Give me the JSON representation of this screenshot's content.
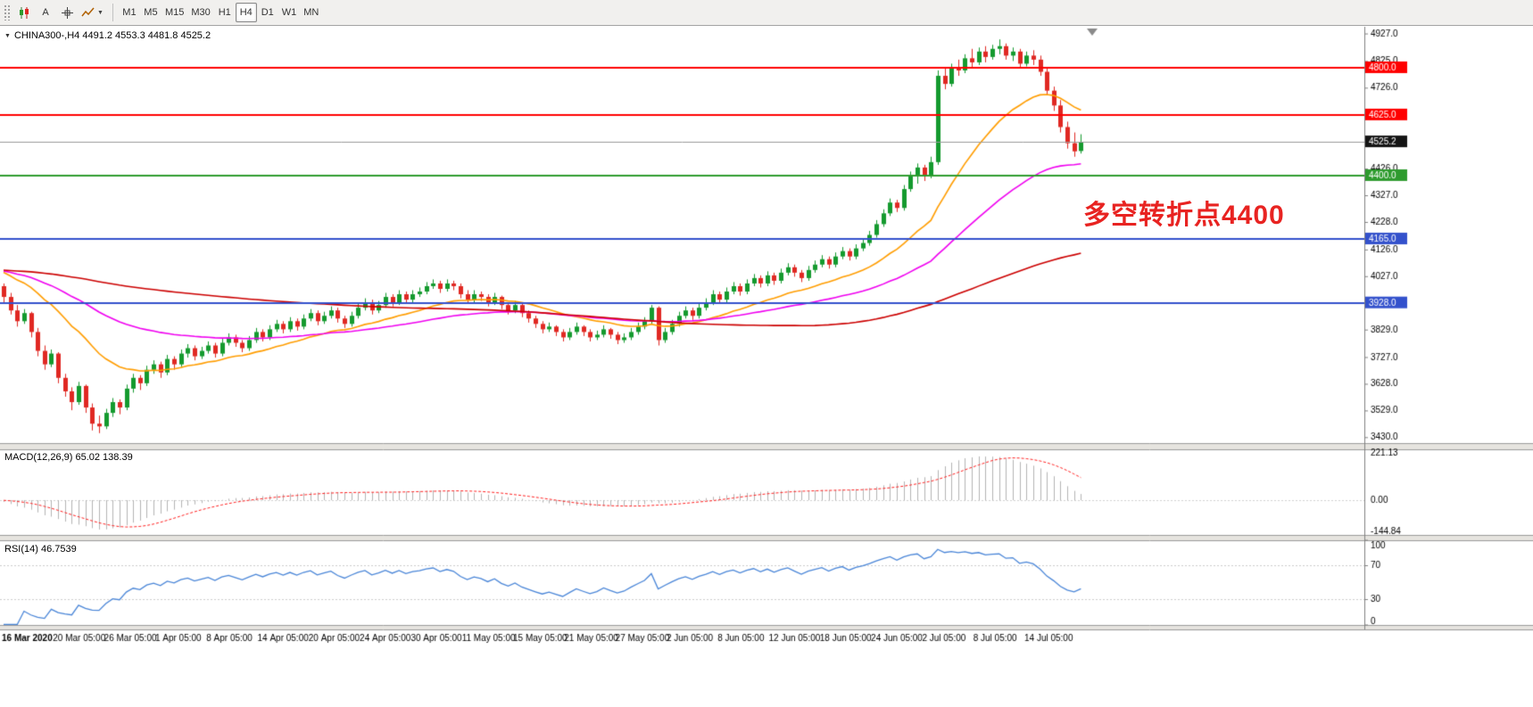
{
  "toolbar": {
    "tools": [
      {
        "name": "chart-type-icon"
      },
      {
        "name": "text-tool",
        "label": "A"
      },
      {
        "name": "crosshair-tool"
      },
      {
        "name": "indicator-dropdown"
      }
    ],
    "timeframes": [
      {
        "label": "M1",
        "active": false
      },
      {
        "label": "M5",
        "active": false
      },
      {
        "label": "M15",
        "active": false
      },
      {
        "label": "M30",
        "active": false
      },
      {
        "label": "H1",
        "active": false
      },
      {
        "label": "H4",
        "active": true
      },
      {
        "label": "D1",
        "active": false
      },
      {
        "label": "W1",
        "active": false
      },
      {
        "label": "MN",
        "active": false
      }
    ]
  },
  "chart": {
    "symbol_title": "CHINA300-,H4  4491.2 4553.3 4481.8 4525.2",
    "dropdown_icon": "▼",
    "annotation": {
      "text": "多空转折点4400",
      "color": "#e82321"
    },
    "macd_label": "MACD(12,26,9) 65.02 138.39",
    "rsi_label": "RSI(14) 46.7539"
  },
  "chart_data": {
    "type": "candlestick",
    "symbol": "CHINA300-",
    "timeframe": "H4",
    "last_ohlc": {
      "open": 4491.2,
      "high": 4553.3,
      "low": 4481.8,
      "close": 4525.2
    },
    "price_axis": {
      "min": 3408,
      "max": 4952,
      "ticks": [
        {
          "v": 4927.0,
          "s": "n"
        },
        {
          "v": 4825.0,
          "s": "n"
        },
        {
          "v": 4800.0,
          "s": "red"
        },
        {
          "v": 4726.0,
          "s": "n"
        },
        {
          "v": 4625.0,
          "s": "red"
        },
        {
          "v": 4525.2,
          "s": "cur"
        },
        {
          "v": 4426.0,
          "s": "n"
        },
        {
          "v": 4400.0,
          "s": "green"
        },
        {
          "v": 4327.0,
          "s": "n"
        },
        {
          "v": 4228.0,
          "s": "n"
        },
        {
          "v": 4165.0,
          "s": "blue"
        },
        {
          "v": 4126.0,
          "s": "n"
        },
        {
          "v": 4027.0,
          "s": "n"
        },
        {
          "v": 3928.0,
          "s": "blue"
        },
        {
          "v": 3829.0,
          "s": "n"
        },
        {
          "v": 3727.0,
          "s": "n"
        },
        {
          "v": 3628.0,
          "s": "n"
        },
        {
          "v": 3529.0,
          "s": "n"
        },
        {
          "v": 3430.0,
          "s": "n"
        }
      ]
    },
    "hlines": [
      {
        "price": 4800.0,
        "color": "#ff0000",
        "lw": 2
      },
      {
        "price": 4625.0,
        "color": "#ff0000",
        "lw": 2
      },
      {
        "price": 4525.2,
        "color": "#9a9a9a",
        "lw": 1
      },
      {
        "price": 4400.0,
        "color": "#2e9b2e",
        "lw": 2
      },
      {
        "price": 4165.0,
        "color": "#3351cc",
        "lw": 2
      },
      {
        "price": 3928.0,
        "color": "#3351cc",
        "lw": 2
      }
    ],
    "mas": [
      {
        "type": "ema",
        "period": 21,
        "color": "#ff9d00"
      },
      {
        "type": "ema",
        "period": 55,
        "color": "#f000f0"
      },
      {
        "type": "sma",
        "period": 120,
        "color": "#cc0000"
      }
    ],
    "ma_seed": 4050,
    "up_color": "#149a2e",
    "down_color": "#e02822",
    "candles": [
      [
        3990,
        4000,
        3930,
        3950
      ],
      [
        3950,
        3965,
        3885,
        3900
      ],
      [
        3900,
        3920,
        3840,
        3860
      ],
      [
        3860,
        3905,
        3850,
        3890
      ],
      [
        3890,
        3895,
        3800,
        3820
      ],
      [
        3820,
        3835,
        3730,
        3750
      ],
      [
        3750,
        3770,
        3680,
        3700
      ],
      [
        3700,
        3755,
        3690,
        3740
      ],
      [
        3740,
        3745,
        3630,
        3650
      ],
      [
        3650,
        3665,
        3580,
        3600
      ],
      [
        3600,
        3615,
        3530,
        3560
      ],
      [
        3560,
        3635,
        3550,
        3620
      ],
      [
        3620,
        3625,
        3520,
        3540
      ],
      [
        3540,
        3555,
        3455,
        3480
      ],
      [
        3480,
        3510,
        3445,
        3470
      ],
      [
        3470,
        3535,
        3460,
        3520
      ],
      [
        3520,
        3575,
        3505,
        3560
      ],
      [
        3560,
        3570,
        3515,
        3540
      ],
      [
        3540,
        3625,
        3530,
        3610
      ],
      [
        3610,
        3665,
        3595,
        3650
      ],
      [
        3650,
        3660,
        3605,
        3630
      ],
      [
        3630,
        3695,
        3620,
        3680
      ],
      [
        3680,
        3715,
        3665,
        3700
      ],
      [
        3700,
        3710,
        3650,
        3670
      ],
      [
        3670,
        3735,
        3660,
        3720
      ],
      [
        3720,
        3730,
        3680,
        3700
      ],
      [
        3700,
        3755,
        3690,
        3740
      ],
      [
        3740,
        3775,
        3725,
        3760
      ],
      [
        3760,
        3770,
        3715,
        3730
      ],
      [
        3730,
        3765,
        3720,
        3750
      ],
      [
        3750,
        3785,
        3740,
        3770
      ],
      [
        3770,
        3780,
        3725,
        3740
      ],
      [
        3740,
        3795,
        3730,
        3780
      ],
      [
        3780,
        3815,
        3770,
        3800
      ],
      [
        3800,
        3810,
        3765,
        3780
      ],
      [
        3780,
        3790,
        3745,
        3760
      ],
      [
        3760,
        3805,
        3750,
        3790
      ],
      [
        3790,
        3835,
        3780,
        3820
      ],
      [
        3820,
        3830,
        3785,
        3800
      ],
      [
        3800,
        3845,
        3790,
        3830
      ],
      [
        3830,
        3865,
        3820,
        3850
      ],
      [
        3850,
        3860,
        3815,
        3830
      ],
      [
        3830,
        3875,
        3820,
        3860
      ],
      [
        3860,
        3870,
        3825,
        3840
      ],
      [
        3840,
        3885,
        3830,
        3870
      ],
      [
        3870,
        3905,
        3860,
        3890
      ],
      [
        3890,
        3900,
        3845,
        3860
      ],
      [
        3860,
        3895,
        3850,
        3880
      ],
      [
        3880,
        3915,
        3870,
        3900
      ],
      [
        3900,
        3910,
        3855,
        3870
      ],
      [
        3870,
        3880,
        3835,
        3850
      ],
      [
        3850,
        3895,
        3840,
        3880
      ],
      [
        3880,
        3925,
        3870,
        3910
      ],
      [
        3910,
        3945,
        3900,
        3930
      ],
      [
        3930,
        3940,
        3885,
        3900
      ],
      [
        3900,
        3935,
        3890,
        3920
      ],
      [
        3920,
        3965,
        3910,
        3950
      ],
      [
        3950,
        3960,
        3915,
        3930
      ],
      [
        3930,
        3975,
        3920,
        3960
      ],
      [
        3960,
        3970,
        3925,
        3940
      ],
      [
        3940,
        3975,
        3930,
        3960
      ],
      [
        3960,
        3985,
        3950,
        3970
      ],
      [
        3970,
        4005,
        3960,
        3990
      ],
      [
        3990,
        4015,
        3980,
        4000
      ],
      [
        4000,
        4010,
        3965,
        3980
      ],
      [
        3980,
        4015,
        3970,
        4000
      ],
      [
        4000,
        4010,
        3975,
        3990
      ],
      [
        3990,
        4000,
        3945,
        3960
      ],
      [
        3960,
        3975,
        3925,
        3940
      ],
      [
        3940,
        3975,
        3930,
        3960
      ],
      [
        3960,
        3970,
        3935,
        3950
      ],
      [
        3950,
        3960,
        3915,
        3930
      ],
      [
        3930,
        3965,
        3920,
        3950
      ],
      [
        3950,
        3955,
        3905,
        3920
      ],
      [
        3920,
        3930,
        3885,
        3900
      ],
      [
        3900,
        3935,
        3890,
        3920
      ],
      [
        3920,
        3925,
        3875,
        3890
      ],
      [
        3890,
        3900,
        3855,
        3870
      ],
      [
        3870,
        3880,
        3835,
        3850
      ],
      [
        3850,
        3860,
        3815,
        3830
      ],
      [
        3830,
        3855,
        3820,
        3840
      ],
      [
        3840,
        3845,
        3805,
        3820
      ],
      [
        3820,
        3830,
        3785,
        3800
      ],
      [
        3800,
        3835,
        3790,
        3820
      ],
      [
        3820,
        3855,
        3810,
        3840
      ],
      [
        3840,
        3845,
        3805,
        3820
      ],
      [
        3820,
        3830,
        3785,
        3800
      ],
      [
        3800,
        3825,
        3790,
        3810
      ],
      [
        3810,
        3845,
        3800,
        3830
      ],
      [
        3830,
        3835,
        3795,
        3810
      ],
      [
        3810,
        3820,
        3775,
        3790
      ],
      [
        3790,
        3815,
        3780,
        3800
      ],
      [
        3800,
        3835,
        3790,
        3820
      ],
      [
        3820,
        3855,
        3810,
        3840
      ],
      [
        3840,
        3875,
        3830,
        3860
      ],
      [
        3860,
        3920,
        3850,
        3910
      ],
      [
        3910,
        3915,
        3770,
        3790
      ],
      [
        3790,
        3835,
        3780,
        3820
      ],
      [
        3820,
        3865,
        3810,
        3850
      ],
      [
        3850,
        3895,
        3840,
        3880
      ],
      [
        3880,
        3915,
        3870,
        3900
      ],
      [
        3900,
        3910,
        3865,
        3880
      ],
      [
        3880,
        3925,
        3870,
        3910
      ],
      [
        3910,
        3945,
        3900,
        3930
      ],
      [
        3930,
        3975,
        3920,
        3960
      ],
      [
        3960,
        3970,
        3925,
        3940
      ],
      [
        3940,
        3985,
        3930,
        3970
      ],
      [
        3970,
        4005,
        3960,
        3990
      ],
      [
        3990,
        4000,
        3955,
        3970
      ],
      [
        3970,
        4015,
        3960,
        4000
      ],
      [
        4000,
        4035,
        3990,
        4020
      ],
      [
        4020,
        4030,
        3985,
        4000
      ],
      [
        4000,
        4045,
        3990,
        4030
      ],
      [
        4030,
        4040,
        3995,
        4010
      ],
      [
        4010,
        4055,
        4000,
        4040
      ],
      [
        4040,
        4075,
        4030,
        4060
      ],
      [
        4060,
        4070,
        4025,
        4040
      ],
      [
        4040,
        4050,
        4005,
        4020
      ],
      [
        4020,
        4065,
        4010,
        4050
      ],
      [
        4050,
        4085,
        4040,
        4070
      ],
      [
        4070,
        4105,
        4060,
        4090
      ],
      [
        4090,
        4100,
        4055,
        4070
      ],
      [
        4070,
        4115,
        4060,
        4100
      ],
      [
        4100,
        4135,
        4090,
        4120
      ],
      [
        4120,
        4130,
        4085,
        4100
      ],
      [
        4100,
        4145,
        4090,
        4130
      ],
      [
        4130,
        4165,
        4120,
        4150
      ],
      [
        4150,
        4195,
        4140,
        4180
      ],
      [
        4180,
        4235,
        4170,
        4220
      ],
      [
        4220,
        4275,
        4210,
        4260
      ],
      [
        4260,
        4315,
        4250,
        4300
      ],
      [
        4300,
        4310,
        4265,
        4280
      ],
      [
        4280,
        4365,
        4270,
        4350
      ],
      [
        4350,
        4415,
        4340,
        4400
      ],
      [
        4400,
        4445,
        4370,
        4430
      ],
      [
        4430,
        4440,
        4380,
        4400
      ],
      [
        4400,
        4470,
        4390,
        4450
      ],
      [
        4450,
        4790,
        4440,
        4770
      ],
      [
        4770,
        4800,
        4720,
        4740
      ],
      [
        4740,
        4815,
        4730,
        4800
      ],
      [
        4800,
        4830,
        4770,
        4790
      ],
      [
        4790,
        4850,
        4780,
        4835
      ],
      [
        4835,
        4870,
        4800,
        4820
      ],
      [
        4820,
        4875,
        4810,
        4860
      ],
      [
        4860,
        4880,
        4820,
        4840
      ],
      [
        4840,
        4885,
        4830,
        4870
      ],
      [
        4870,
        4905,
        4850,
        4880
      ],
      [
        4880,
        4890,
        4830,
        4845
      ],
      [
        4845,
        4875,
        4825,
        4860
      ],
      [
        4860,
        4870,
        4800,
        4815
      ],
      [
        4815,
        4860,
        4805,
        4845
      ],
      [
        4845,
        4865,
        4810,
        4830
      ],
      [
        4830,
        4845,
        4770,
        4785
      ],
      [
        4785,
        4800,
        4700,
        4715
      ],
      [
        4715,
        4730,
        4640,
        4660
      ],
      [
        4660,
        4680,
        4560,
        4580
      ],
      [
        4580,
        4600,
        4500,
        4520
      ],
      [
        4520,
        4560,
        4470,
        4490
      ],
      [
        4491.2,
        4553.3,
        4481.8,
        4525.2
      ]
    ],
    "time_labels": [
      "16 Mar 2020",
      "20 Mar 05:00",
      "26 Mar 05:00",
      "1 Apr 05:00",
      "8 Apr 05:00",
      "14 Apr 05:00",
      "20 Apr 05:00",
      "24 Apr 05:00",
      "30 Apr 05:00",
      "11 May 05:00",
      "15 May 05:00",
      "21 May 05:00",
      "27 May 05:00",
      "2 Jun 05:00",
      "8 Jun 05:00",
      "12 Jun 05:00",
      "18 Jun 05:00",
      "24 Jun 05:00",
      "2 Jul 05:00",
      "8 Jul 05:00",
      "14 Jul 05:00"
    ],
    "macd": {
      "periods": [
        12,
        26,
        9
      ],
      "value": 65.02,
      "signal_value": 138.39,
      "axis": [
        221.13,
        0.0,
        -144.84
      ],
      "hist_color": "#b4b4b4",
      "signal_color": "#ff2020"
    },
    "rsi": {
      "period": 14,
      "value": 46.7539,
      "color": "#4a86d8",
      "axis": [
        100,
        70,
        30,
        0
      ],
      "levels": [
        70,
        30
      ]
    }
  }
}
